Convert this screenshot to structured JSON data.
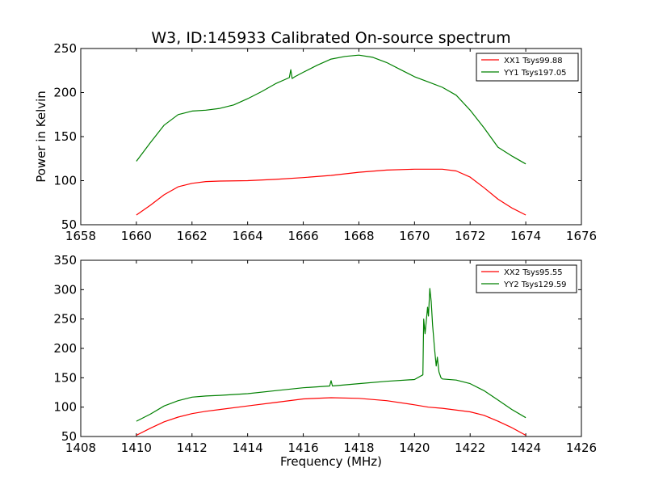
{
  "colors": {
    "xx": "#ff0000",
    "yy": "#008000",
    "axes": "#000000",
    "background": "#ffffff"
  },
  "chart_data": [
    {
      "type": "line",
      "title": "W3, ID:145933 Calibrated On-source spectrum",
      "xlabel": "",
      "ylabel": "Power in Kelvin",
      "xlim": [
        1658,
        1676
      ],
      "ylim": [
        50,
        250
      ],
      "xticks": [
        "1658",
        "1660",
        "1662",
        "1664",
        "1666",
        "1668",
        "1670",
        "1672",
        "1674",
        "1676"
      ],
      "yticks": [
        "50",
        "100",
        "150",
        "200",
        "250"
      ],
      "legend_position": "top-right",
      "series": [
        {
          "name": "XX1 Tsys99.88",
          "color": "#ff0000",
          "x": [
            1660,
            1660.5,
            1661,
            1661.5,
            1662,
            1662.5,
            1663,
            1664,
            1665,
            1666,
            1667,
            1668,
            1669,
            1670,
            1671,
            1671.5,
            1672,
            1672.5,
            1673,
            1673.5,
            1674
          ],
          "y": [
            61,
            72,
            84,
            93,
            97,
            99,
            99.5,
            100,
            101.5,
            103.5,
            106,
            109.5,
            112,
            113,
            113,
            111,
            104,
            92,
            79,
            69,
            61
          ]
        },
        {
          "name": "YY1 Tsys197.05",
          "color": "#008000",
          "x": [
            1660,
            1660.5,
            1661,
            1661.5,
            1662,
            1662.5,
            1663,
            1663.5,
            1664,
            1664.5,
            1665,
            1665.5,
            1665.55,
            1665.6,
            1665.7,
            1666,
            1666.5,
            1667,
            1667.5,
            1668,
            1668.5,
            1669,
            1669.5,
            1670,
            1670.5,
            1671,
            1671.5,
            1672,
            1672.5,
            1673,
            1673.5,
            1674
          ],
          "y": [
            122,
            143,
            163,
            175,
            179,
            180,
            182,
            186,
            193,
            201,
            210,
            217,
            226,
            216,
            218,
            223,
            231,
            238,
            241,
            242.5,
            240,
            234,
            226,
            218,
            212,
            206,
            197,
            180,
            160,
            138,
            128,
            119
          ]
        }
      ]
    },
    {
      "type": "line",
      "title": "",
      "xlabel": "Frequency (MHz)",
      "ylabel": "",
      "xlim": [
        1408,
        1426
      ],
      "ylim": [
        50,
        350
      ],
      "xticks": [
        "1408",
        "1410",
        "1412",
        "1414",
        "1416",
        "1418",
        "1420",
        "1422",
        "1424",
        "1426"
      ],
      "yticks": [
        "50",
        "100",
        "150",
        "200",
        "250",
        "300",
        "350"
      ],
      "legend_position": "top-right",
      "series": [
        {
          "name": "XX2 Tsys95.55",
          "color": "#ff0000",
          "x": [
            1410,
            1410.5,
            1411,
            1411.5,
            1412,
            1412.5,
            1413,
            1414,
            1415,
            1416,
            1417,
            1418,
            1419,
            1420,
            1420.5,
            1421,
            1422,
            1422.5,
            1423,
            1423.5,
            1424
          ],
          "y": [
            52,
            64,
            75,
            83,
            89,
            93,
            96,
            102,
            108,
            114,
            116,
            115,
            111,
            104,
            100,
            98,
            92,
            86,
            76,
            65,
            52
          ],
          "_comment": "approx"
        },
        {
          "name": "YY2 Tsys129.59",
          "color": "#008000",
          "x": [
            1410,
            1410.5,
            1411,
            1411.5,
            1412,
            1412.5,
            1413,
            1414,
            1415,
            1416,
            1416.95,
            1417,
            1417.05,
            1418,
            1419,
            1420,
            1420.3,
            1420.33,
            1420.38,
            1420.42,
            1420.47,
            1420.5,
            1420.55,
            1420.6,
            1420.65,
            1420.72,
            1420.78,
            1420.82,
            1420.88,
            1420.95,
            1421,
            1421.5,
            1422,
            1422.5,
            1423,
            1423.5,
            1424
          ],
          "y": [
            76,
            88,
            102,
            111,
            117,
            119,
            120,
            123,
            128,
            133,
            136,
            145,
            136,
            140,
            144,
            147,
            155,
            250,
            225,
            245,
            270,
            255,
            302,
            280,
            240,
            200,
            170,
            185,
            160,
            150,
            148,
            146,
            140,
            128,
            112,
            96,
            82
          ]
        }
      ]
    }
  ]
}
